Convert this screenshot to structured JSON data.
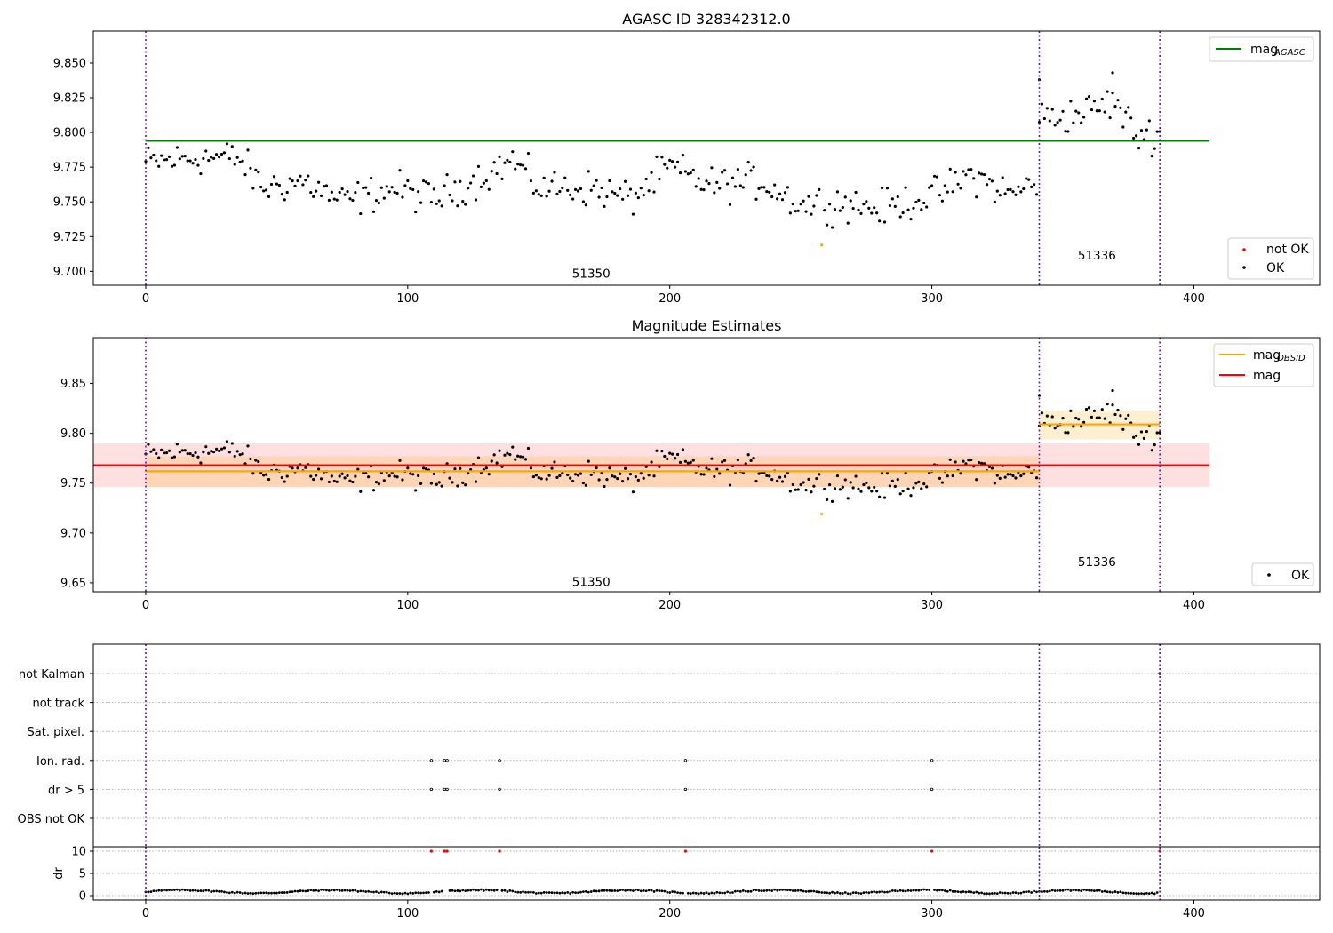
{
  "chart_data": [
    {
      "id": "agasc",
      "type": "scatter",
      "title": "AGASC ID 328342312.0",
      "xlim": [
        -20,
        448
      ],
      "ylim": [
        9.69,
        9.873
      ],
      "xticks": [
        0,
        100,
        200,
        300,
        400
      ],
      "yticks": [
        9.7,
        9.725,
        9.75,
        9.775,
        9.8,
        9.825,
        9.85
      ],
      "ytick_labels": [
        "9.700",
        "9.725",
        "9.750",
        "9.775",
        "9.800",
        "9.825",
        "9.850"
      ],
      "vlines": [
        0,
        341,
        387
      ],
      "mag_agasc": {
        "value": 9.794,
        "x": [
          0,
          406
        ],
        "color": "#008000"
      },
      "obsid_labels": [
        {
          "text": "51350",
          "x": 170,
          "y": 9.6955
        },
        {
          "text": "51336",
          "x": 363,
          "y": 9.7085
        }
      ],
      "legend_top": {
        "name": "mag",
        "sub": "AGASC",
        "placement": "top-right"
      },
      "legend_bottom": {
        "entries": [
          {
            "name": "not OK",
            "color": "#ff0000"
          },
          {
            "name": "OK",
            "color": "#000000"
          }
        ],
        "placement": "bottom-right"
      },
      "not_ok_points": [
        [
          258,
          9.719
        ]
      ]
    },
    {
      "id": "estimates",
      "type": "scatter",
      "title": "Magnitude Estimates",
      "xlim": [
        -20,
        448
      ],
      "ylim": [
        9.641,
        9.896
      ],
      "xticks": [
        0,
        100,
        200,
        300,
        400
      ],
      "yticks": [
        9.65,
        9.7,
        9.75,
        9.8,
        9.85
      ],
      "ytick_labels": [
        "9.65",
        "9.70",
        "9.75",
        "9.80",
        "9.85"
      ],
      "vlines": [
        0,
        341,
        387
      ],
      "mag": {
        "value": 9.768,
        "band": [
          9.746,
          9.79
        ],
        "x": [
          -20,
          406
        ],
        "color": "#ff0000"
      },
      "mag_obsid": [
        {
          "x": [
            0,
            341
          ],
          "value": 9.762,
          "band": [
            9.746,
            9.777
          ]
        },
        {
          "x": [
            341,
            387
          ],
          "value": 9.809,
          "band": [
            9.794,
            9.823
          ]
        }
      ],
      "obsid_labels": [
        {
          "text": "51350",
          "x": 170,
          "y": 9.647
        },
        {
          "text": "51336",
          "x": 363,
          "y": 9.667
        }
      ],
      "legend_top": {
        "entries": [
          {
            "name": "mag",
            "sub": "OBSID",
            "color": "#ffa500"
          },
          {
            "name": "mag",
            "sub": "",
            "color": "#ff0000"
          }
        ],
        "placement": "top-right"
      },
      "legend_bottom": {
        "entries": [
          {
            "name": "OK",
            "color": "#000000"
          }
        ],
        "placement": "bottom-right"
      },
      "highlight_points": [
        [
          258,
          9.719
        ]
      ]
    },
    {
      "id": "flags",
      "type": "scatter",
      "xlim": [
        -20,
        448
      ],
      "xticks": [
        0,
        100,
        200,
        300,
        400
      ],
      "vlines": [
        0,
        341,
        387
      ],
      "categories": [
        "not Kalman",
        "not track",
        "Sat. pixel.",
        "Ion. rad.",
        "dr > 5",
        "OBS not OK"
      ],
      "flag_points": {
        "Ion. rad.": [
          109,
          114,
          115,
          135,
          206,
          300
        ],
        "dr > 5": [
          109,
          114,
          115,
          135,
          206,
          300
        ],
        "not Kalman": [
          387
        ]
      }
    },
    {
      "id": "dr",
      "type": "scatter",
      "ylabel": "dr",
      "xlim": [
        -20,
        448
      ],
      "ylim": [
        -1,
        11
      ],
      "xticks": [
        0,
        100,
        200,
        300,
        400
      ],
      "yticks": [
        0,
        5,
        10
      ],
      "ytick_labels": [
        "0",
        "5",
        "10"
      ],
      "vlines": [
        0,
        341,
        387
      ],
      "dr_high_points": [
        109,
        114,
        115,
        135,
        206,
        300,
        387
      ]
    }
  ],
  "ok_points_x_range": [
    0,
    387
  ],
  "colors": {
    "ok": "#000000",
    "not_ok": "#ff0000",
    "obsid": "#ffa500",
    "mag": "#ff0000",
    "agasc": "#008000",
    "vline": "#6a0dad"
  }
}
